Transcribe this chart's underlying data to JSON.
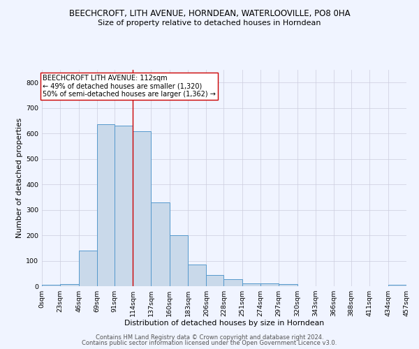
{
  "title": "BEECHCROFT, LITH AVENUE, HORNDEAN, WATERLOOVILLE, PO8 0HA",
  "subtitle": "Size of property relative to detached houses in Horndean",
  "xlabel": "Distribution of detached houses by size in Horndean",
  "ylabel": "Number of detached properties",
  "footnote1": "Contains HM Land Registry data © Crown copyright and database right 2024.",
  "footnote2": "Contains public sector information licensed under the Open Government Licence v3.0.",
  "bin_edges": [
    0,
    23,
    46,
    69,
    91,
    114,
    137,
    160,
    183,
    206,
    228,
    251,
    274,
    297,
    320,
    343,
    366,
    388,
    411,
    434,
    457
  ],
  "bin_labels": [
    "0sqm",
    "23sqm",
    "46sqm",
    "69sqm",
    "91sqm",
    "114sqm",
    "137sqm",
    "160sqm",
    "183sqm",
    "206sqm",
    "228sqm",
    "251sqm",
    "274sqm",
    "297sqm",
    "320sqm",
    "343sqm",
    "366sqm",
    "388sqm",
    "411sqm",
    "434sqm",
    "457sqm"
  ],
  "bar_heights": [
    5,
    8,
    140,
    635,
    630,
    610,
    330,
    200,
    85,
    45,
    27,
    10,
    12,
    8,
    0,
    0,
    0,
    0,
    0,
    5
  ],
  "bar_facecolor": "#c9d9ea",
  "bar_edgecolor": "#5599cc",
  "bar_linewidth": 0.7,
  "vline_x": 114,
  "vline_color": "#cc0000",
  "vline_linewidth": 1.0,
  "ylim": [
    0,
    850
  ],
  "yticks": [
    0,
    100,
    200,
    300,
    400,
    500,
    600,
    700,
    800
  ],
  "annotation_text": "BEECHCROFT LITH AVENUE: 112sqm\n← 49% of detached houses are smaller (1,320)\n50% of semi-detached houses are larger (1,362) →",
  "bg_color": "#f0f4ff",
  "grid_color": "#ccccdd",
  "title_fontsize": 8.5,
  "subtitle_fontsize": 8.0,
  "axis_label_fontsize": 7.8,
  "tick_fontsize": 6.8,
  "annotation_fontsize": 7.0,
  "footnote_fontsize": 6.0
}
